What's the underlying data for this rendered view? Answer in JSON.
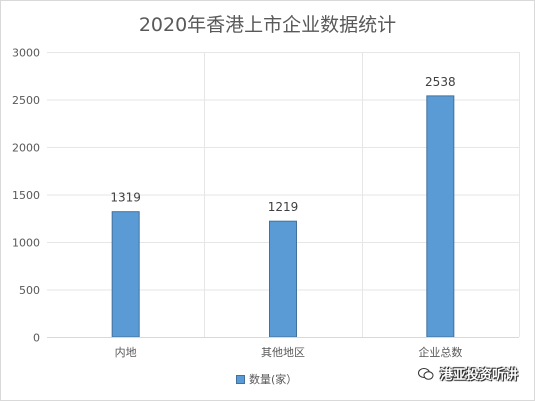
{
  "chart_data": {
    "type": "bar",
    "title": "2020年香港上市企业数据统计",
    "categories": [
      "内地",
      "其他地区",
      "企业总数"
    ],
    "series": [
      {
        "name": "数量(家）",
        "values": [
          1319,
          1219,
          2538
        ],
        "color": "#5b9bd5",
        "border": "#41719c"
      }
    ],
    "yticks": [
      0,
      500,
      1000,
      1500,
      2000,
      2500,
      3000
    ],
    "ylim": [
      0,
      3000
    ],
    "grid": true,
    "legend_position": "bottom",
    "data_labels": true
  },
  "watermark": {
    "text": "港亚投资听讲",
    "icon": "wechat-icon"
  }
}
